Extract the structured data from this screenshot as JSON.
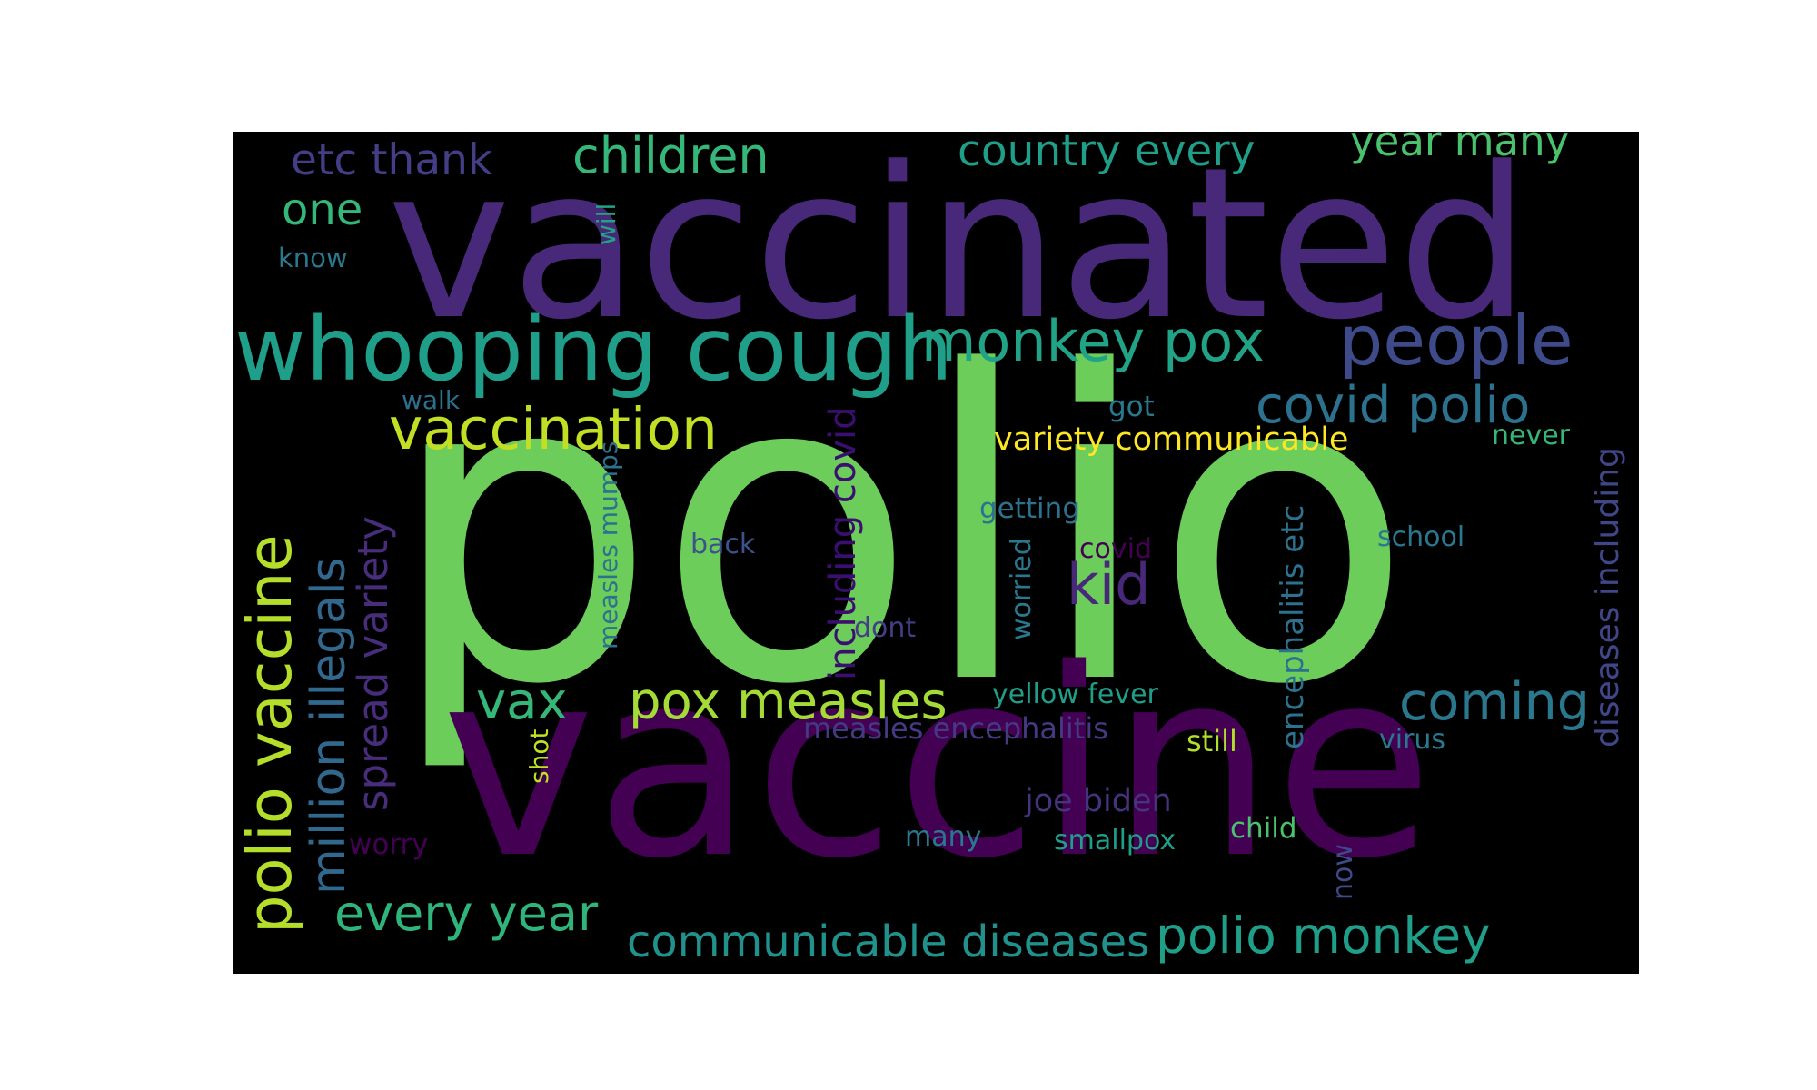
{
  "words": [
    {
      "text": "polio",
      "color": "#6ccd5a"
    },
    {
      "text": "vaccine",
      "color": "#440154"
    },
    {
      "text": "vaccinated",
      "color": "#482878"
    },
    {
      "text": "whooping cough",
      "color": "#1f9e89"
    },
    {
      "text": "people",
      "color": "#3e4a89"
    },
    {
      "text": "monkey pox",
      "color": "#20a386"
    },
    {
      "text": "children",
      "color": "#35b779"
    },
    {
      "text": "country every",
      "color": "#1f9e89"
    },
    {
      "text": "year many",
      "color": "#4ac16d"
    },
    {
      "text": "etc thank",
      "color": "#433e85"
    },
    {
      "text": "one",
      "color": "#35b779"
    },
    {
      "text": "know",
      "color": "#2a788e"
    },
    {
      "text": "will",
      "color": "#20a386"
    },
    {
      "text": "vaccination",
      "color": "#c2df23"
    },
    {
      "text": "covid polio",
      "color": "#2c728e"
    },
    {
      "text": "polio vaccine",
      "color": "#b5de2b"
    },
    {
      "text": "million illegals",
      "color": "#31688e"
    },
    {
      "text": "spread variety",
      "color": "#472d7b"
    },
    {
      "text": "walk",
      "color": "#2d708e"
    },
    {
      "text": "measles mumps",
      "color": "#2c728e"
    },
    {
      "text": "including covid",
      "color": "#3b0f70"
    },
    {
      "text": "got",
      "color": "#2a788e"
    },
    {
      "text": "variety communicable",
      "color": "#fde725"
    },
    {
      "text": "never",
      "color": "#35b779"
    },
    {
      "text": "getting",
      "color": "#2c728e"
    },
    {
      "text": "back",
      "color": "#3b528b"
    },
    {
      "text": "covid",
      "color": "#440154"
    },
    {
      "text": "kid",
      "color": "#482878"
    },
    {
      "text": "school",
      "color": "#2a788e"
    },
    {
      "text": "encephalitis etc",
      "color": "#2c728e"
    },
    {
      "text": "diseases including",
      "color": "#404688"
    },
    {
      "text": "worried",
      "color": "#2a788e"
    },
    {
      "text": "dont",
      "color": "#433e85"
    },
    {
      "text": "vax",
      "color": "#35b779"
    },
    {
      "text": "pox measles",
      "color": "#a5db36"
    },
    {
      "text": "yellow fever",
      "color": "#1f9e89"
    },
    {
      "text": "coming",
      "color": "#2a788e"
    },
    {
      "text": "measles encephalitis",
      "color": "#443983"
    },
    {
      "text": "still",
      "color": "#b5de2b"
    },
    {
      "text": "virus",
      "color": "#2a788e"
    },
    {
      "text": "shot",
      "color": "#c2df23"
    },
    {
      "text": "joe biden",
      "color": "#46337e"
    },
    {
      "text": "worry",
      "color": "#440154"
    },
    {
      "text": "many",
      "color": "#2a788e"
    },
    {
      "text": "smallpox",
      "color": "#1f9e89"
    },
    {
      "text": "child",
      "color": "#4ac16d"
    },
    {
      "text": "now",
      "color": "#3e4a89"
    },
    {
      "text": "every year",
      "color": "#2fb47c"
    },
    {
      "text": "communicable diseases",
      "color": "#21918c"
    },
    {
      "text": "polio monkey",
      "color": "#1f9e89"
    }
  ]
}
